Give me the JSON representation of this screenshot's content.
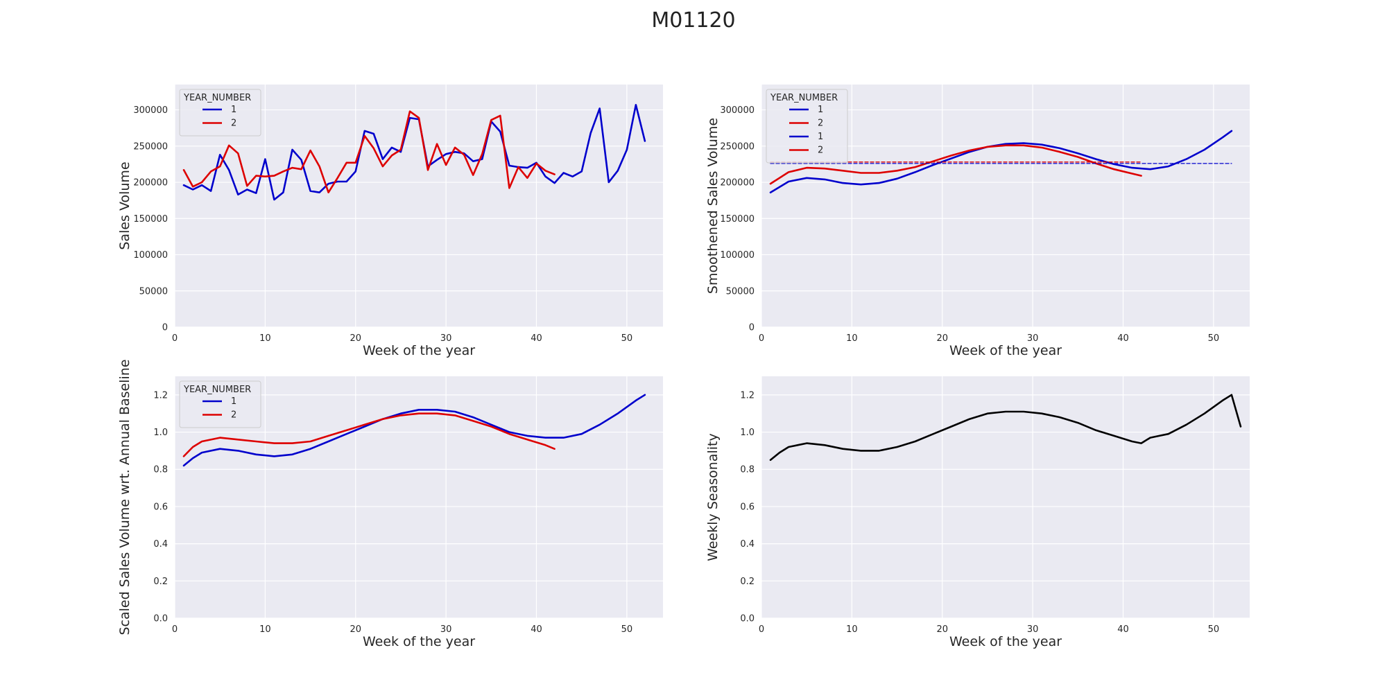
{
  "figure": {
    "title": "M01120"
  },
  "colors": {
    "year1": "#0000cc",
    "year2": "#dd0000",
    "season": "#000000",
    "axes_bg": "#eaeaf2",
    "grid": "#ffffff"
  },
  "chart_data": [
    {
      "type": "line",
      "xlabel": "Week of the year",
      "ylabel": "Sales Volume",
      "xlim": [
        0,
        54
      ],
      "ylim": [
        0,
        335000
      ],
      "xticks": [
        0,
        10,
        20,
        30,
        40,
        50
      ],
      "yticks": [
        0,
        50000,
        100000,
        150000,
        200000,
        250000,
        300000
      ],
      "ytick_labels": [
        "0",
        "50000",
        "100000",
        "150000",
        "200000",
        "250000",
        "300000"
      ],
      "grid": true,
      "legend": {
        "title": "YEAR_NUMBER",
        "position": "top-left",
        "entries": [
          "1",
          "2"
        ]
      },
      "series": [
        {
          "name": "1",
          "color": "year1",
          "x": [
            1,
            2,
            3,
            4,
            5,
            6,
            7,
            8,
            9,
            10,
            11,
            12,
            13,
            14,
            15,
            16,
            17,
            18,
            19,
            20,
            21,
            22,
            23,
            24,
            25,
            26,
            27,
            28,
            29,
            30,
            31,
            32,
            33,
            34,
            35,
            36,
            37,
            38,
            39,
            40,
            41,
            42,
            43,
            44,
            45,
            46,
            47,
            48,
            49,
            50,
            51,
            52
          ],
          "y": [
            196000,
            190000,
            196000,
            188000,
            238000,
            217000,
            183000,
            190000,
            185000,
            232000,
            176000,
            186000,
            245000,
            231000,
            188000,
            186000,
            198000,
            201000,
            201000,
            215000,
            271000,
            267000,
            232000,
            248000,
            242000,
            289000,
            287000,
            222000,
            231000,
            239000,
            242000,
            240000,
            229000,
            232000,
            284000,
            270000,
            223000,
            221000,
            220000,
            227000,
            208000,
            199000,
            213000,
            208000,
            215000,
            268000,
            302000,
            200000,
            216000,
            245000,
            307000,
            257000
          ]
        },
        {
          "name": "2",
          "color": "year2",
          "x": [
            1,
            2,
            3,
            4,
            5,
            6,
            7,
            8,
            9,
            10,
            11,
            12,
            13,
            14,
            15,
            16,
            17,
            18,
            19,
            20,
            21,
            22,
            23,
            24,
            25,
            26,
            27,
            28,
            29,
            30,
            31,
            32,
            33,
            34,
            35,
            36,
            37,
            38,
            39,
            40,
            41,
            42
          ],
          "y": [
            217000,
            194000,
            200000,
            215000,
            222000,
            251000,
            240000,
            195000,
            209000,
            208000,
            209000,
            215000,
            220000,
            218000,
            244000,
            222000,
            186000,
            206000,
            227000,
            227000,
            264000,
            247000,
            222000,
            237000,
            245000,
            298000,
            289000,
            217000,
            253000,
            224000,
            248000,
            238000,
            210000,
            239000,
            286000,
            292000,
            192000,
            221000,
            206000,
            226000,
            216000,
            211000
          ]
        }
      ]
    },
    {
      "type": "line",
      "xlabel": "Week of the year",
      "ylabel": "Smoothened Sales Volume",
      "xlim": [
        0,
        54
      ],
      "ylim": [
        0,
        335000
      ],
      "xticks": [
        0,
        10,
        20,
        30,
        40,
        50
      ],
      "yticks": [
        0,
        50000,
        100000,
        150000,
        200000,
        250000,
        300000
      ],
      "ytick_labels": [
        "0",
        "50000",
        "100000",
        "150000",
        "200000",
        "250000",
        "300000"
      ],
      "grid": true,
      "legend": {
        "title": "YEAR_NUMBER",
        "position": "top-left",
        "entries": [
          "1",
          "2",
          "1",
          "2"
        ]
      },
      "series": [
        {
          "name": "1",
          "color": "year1",
          "style": "solid",
          "x": [
            1,
            3,
            5,
            7,
            9,
            11,
            13,
            15,
            17,
            19,
            21,
            23,
            25,
            27,
            29,
            31,
            33,
            35,
            37,
            39,
            41,
            43,
            45,
            47,
            49,
            51,
            52
          ],
          "y": [
            186000,
            201000,
            206000,
            204000,
            199000,
            197000,
            199000,
            205000,
            214000,
            224000,
            233000,
            242000,
            249000,
            253000,
            254000,
            252000,
            247000,
            240000,
            232000,
            225000,
            220000,
            218000,
            222000,
            232000,
            245000,
            262000,
            271000
          ]
        },
        {
          "name": "2",
          "color": "year2",
          "style": "solid",
          "x": [
            1,
            3,
            5,
            7,
            9,
            11,
            13,
            15,
            17,
            19,
            21,
            23,
            25,
            27,
            29,
            31,
            33,
            35,
            37,
            39,
            41,
            42
          ],
          "y": [
            198000,
            214000,
            220000,
            219000,
            216000,
            213000,
            213000,
            216000,
            221000,
            229000,
            237000,
            244000,
            249000,
            251000,
            251000,
            248000,
            242000,
            235000,
            226000,
            218000,
            212000,
            209000
          ]
        },
        {
          "name": "1",
          "color": "year1",
          "style": "dashed",
          "x": [
            1,
            52
          ],
          "y": [
            226000,
            226000
          ]
        },
        {
          "name": "2",
          "color": "year2",
          "style": "dashed",
          "x": [
            1,
            42
          ],
          "y": [
            228000,
            228000
          ]
        }
      ]
    },
    {
      "type": "line",
      "xlabel": "Week of the year",
      "ylabel": "Scaled Sales Volume wrt. Annual Baseline",
      "xlim": [
        0,
        54
      ],
      "ylim": [
        0,
        1.3
      ],
      "xticks": [
        0,
        10,
        20,
        30,
        40,
        50
      ],
      "yticks": [
        0,
        0.2,
        0.4,
        0.6,
        0.8,
        1.0,
        1.2
      ],
      "ytick_labels": [
        "0.0",
        "0.2",
        "0.4",
        "0.6",
        "0.8",
        "1.0",
        "1.2"
      ],
      "grid": true,
      "legend": {
        "title": "YEAR_NUMBER",
        "position": "top-left",
        "entries": [
          "1",
          "2"
        ]
      },
      "series": [
        {
          "name": "1",
          "color": "year1",
          "x": [
            1,
            2,
            3,
            5,
            7,
            9,
            11,
            13,
            15,
            17,
            19,
            21,
            23,
            25,
            27,
            29,
            31,
            33,
            35,
            37,
            39,
            41,
            43,
            45,
            47,
            49,
            51,
            52
          ],
          "y": [
            0.82,
            0.86,
            0.89,
            0.91,
            0.9,
            0.88,
            0.87,
            0.88,
            0.91,
            0.95,
            0.99,
            1.03,
            1.07,
            1.1,
            1.12,
            1.12,
            1.11,
            1.08,
            1.04,
            1.0,
            0.98,
            0.97,
            0.97,
            0.99,
            1.04,
            1.1,
            1.17,
            1.2
          ]
        },
        {
          "name": "2",
          "color": "year2",
          "x": [
            1,
            2,
            3,
            5,
            7,
            9,
            11,
            13,
            15,
            17,
            19,
            21,
            23,
            25,
            27,
            29,
            31,
            33,
            35,
            37,
            39,
            41,
            42
          ],
          "y": [
            0.87,
            0.92,
            0.95,
            0.97,
            0.96,
            0.95,
            0.94,
            0.94,
            0.95,
            0.98,
            1.01,
            1.04,
            1.07,
            1.09,
            1.1,
            1.1,
            1.09,
            1.06,
            1.03,
            0.99,
            0.96,
            0.93,
            0.91
          ]
        }
      ]
    },
    {
      "type": "line",
      "xlabel": "Week of the year",
      "ylabel": "Weekly Seasonality",
      "xlim": [
        0,
        54
      ],
      "ylim": [
        0,
        1.3
      ],
      "xticks": [
        0,
        10,
        20,
        30,
        40,
        50
      ],
      "yticks": [
        0,
        0.2,
        0.4,
        0.6,
        0.8,
        1.0,
        1.2
      ],
      "ytick_labels": [
        "0.0",
        "0.2",
        "0.4",
        "0.6",
        "0.8",
        "1.0",
        "1.2"
      ],
      "grid": true,
      "series": [
        {
          "color": "season",
          "x": [
            1,
            2,
            3,
            4,
            5,
            7,
            9,
            11,
            13,
            15,
            17,
            19,
            21,
            23,
            25,
            27,
            29,
            31,
            33,
            35,
            37,
            39,
            41,
            42,
            43,
            44,
            45,
            47,
            49,
            51,
            52,
            53
          ],
          "y": [
            0.85,
            0.89,
            0.92,
            0.93,
            0.94,
            0.93,
            0.91,
            0.9,
            0.9,
            0.92,
            0.95,
            0.99,
            1.03,
            1.07,
            1.1,
            1.11,
            1.11,
            1.1,
            1.08,
            1.05,
            1.01,
            0.98,
            0.95,
            0.94,
            0.97,
            0.98,
            0.99,
            1.04,
            1.1,
            1.17,
            1.2,
            1.03
          ]
        }
      ]
    }
  ]
}
